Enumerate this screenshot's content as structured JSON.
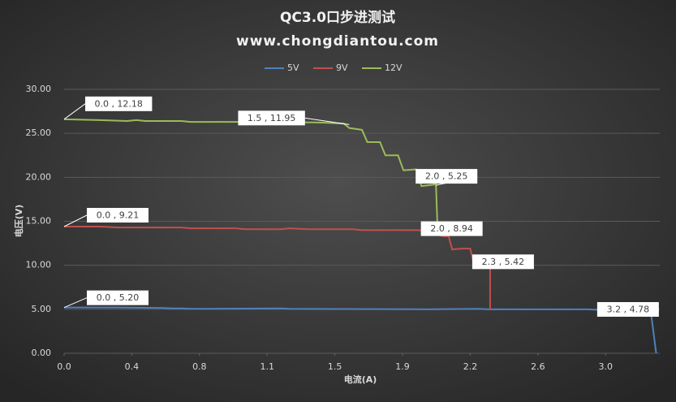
{
  "chart_data": {
    "type": "line",
    "title": "QC3.0口步进测试",
    "subtitle": "www.chongdiantou.com",
    "x_label": "电流(A)",
    "y_label": "电压(V)",
    "xlim": [
      0,
      3.3
    ],
    "xticks": [
      {
        "value": 0,
        "label": "0.0"
      },
      {
        "value": 0.375,
        "label": "0.4"
      },
      {
        "value": 0.75,
        "label": "0.8"
      },
      {
        "value": 1.125,
        "label": "1.1"
      },
      1.5,
      {
        "value": 1.875,
        "label": "1.9"
      },
      {
        "value": 2.25,
        "label": "2.2"
      },
      {
        "value": 2.625,
        "label": "2.6"
      },
      {
        "value": 3,
        "label": "3.0"
      }
    ],
    "ylim": [
      0,
      30
    ],
    "yticks": [
      {
        "value": 0,
        "label": "0.00"
      },
      {
        "value": 5,
        "label": "5.00"
      },
      {
        "value": 10,
        "label": "10.00"
      },
      {
        "value": 15,
        "label": "15.00"
      },
      {
        "value": 20,
        "label": "20.00"
      },
      {
        "value": 25,
        "label": "25.00"
      },
      {
        "value": 30,
        "label": "30.00"
      }
    ],
    "grid": true,
    "legend": "top",
    "series": [
      {
        "name": "5V",
        "color": "#4f81bd",
        "x": [
          0,
          0.3,
          0.55,
          0.6,
          0.65,
          0.7,
          1.2,
          1.25,
          2.0,
          2.3,
          2.35,
          2.9,
          3.0,
          3.25,
          3.28
        ],
        "values": [
          5.2,
          5.2,
          5.15,
          5.1,
          5.1,
          5.05,
          5.1,
          5.05,
          5.0,
          5.05,
          5.0,
          5.0,
          4.9,
          4.8,
          0
        ]
      },
      {
        "name": "9V",
        "color": "#c0504d",
        "x": [
          0,
          0.2,
          0.3,
          0.65,
          0.7,
          0.95,
          1.0,
          1.2,
          1.25,
          1.35,
          1.6,
          1.65,
          1.95,
          2.03,
          2.06,
          2.1,
          2.13,
          2.15,
          2.2,
          2.25,
          2.27,
          2.36,
          2.36
        ],
        "values": [
          14.4,
          14.4,
          14.3,
          14.3,
          14.2,
          14.2,
          14.1,
          14.1,
          14.2,
          14.1,
          14.1,
          14.0,
          14.0,
          13.9,
          13.5,
          13.3,
          13.3,
          11.8,
          11.9,
          11.9,
          10.2,
          10.4,
          5.0
        ]
      },
      {
        "name": "12V",
        "color": "#9bbb59",
        "x": [
          0,
          0.2,
          0.35,
          0.4,
          0.45,
          0.65,
          0.7,
          1.0,
          1.05,
          1.2,
          1.25,
          1.45,
          1.55,
          1.58,
          1.65,
          1.68,
          1.75,
          1.78,
          1.85,
          1.88,
          1.95,
          1.98,
          2.06,
          2.07
        ],
        "values": [
          26.6,
          26.5,
          26.4,
          26.5,
          26.4,
          26.4,
          26.3,
          26.3,
          26.2,
          26.2,
          26.3,
          26.2,
          26.1,
          25.6,
          25.4,
          24.0,
          24.0,
          22.5,
          22.5,
          20.8,
          20.9,
          19.0,
          19.2,
          13.5
        ]
      }
    ],
    "annotations": [
      {
        "text": "0.0 , 12.18",
        "x": 0,
        "y": 26.6
      },
      {
        "text": "0.0 , 9.21",
        "x": 0,
        "y": 14.4
      },
      {
        "text": "0.0 , 5.20",
        "x": 0,
        "y": 5.2
      },
      {
        "text": "1.5 , 11.95",
        "x": 1.58,
        "y": 26.0
      },
      {
        "text": "2.0 , 5.25",
        "x": 2.06,
        "y": 19.1
      },
      {
        "text": "2.0 , 8.94",
        "x": 2.08,
        "y": 13.7
      },
      {
        "text": "2.3 , 5.42",
        "x": 2.36,
        "y": 10.4
      },
      {
        "text": "3.2 , 4.78",
        "x": 3.25,
        "y": 4.8
      }
    ]
  }
}
